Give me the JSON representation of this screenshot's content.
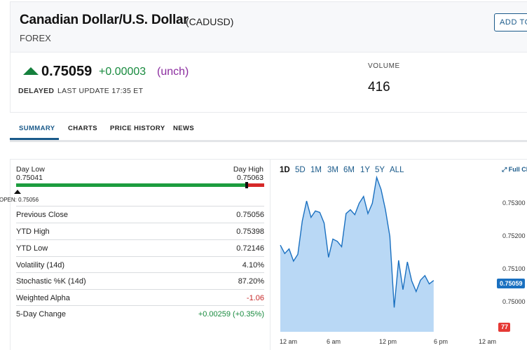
{
  "header": {
    "title": "Canadian Dollar/U.S. Dollar",
    "ticker": "(CADUSD)",
    "subtitle": "FOREX",
    "add_button": "ADD TO WA"
  },
  "quote": {
    "price": "0.75059",
    "change": "+0.00003",
    "change_pct": "(unch)",
    "delayed": "DELAYED",
    "last_update": "LAST UPDATE  17:35 ET",
    "volume_label": "VOLUME",
    "volume_value": "416",
    "colors": {
      "up": "#15803d",
      "unch": "#8b2c9f"
    }
  },
  "tabs": [
    {
      "label": "SUMMARY",
      "active": true
    },
    {
      "label": "CHARTS",
      "active": false
    },
    {
      "label": "PRICE HISTORY",
      "active": false
    },
    {
      "label": "NEWS",
      "active": false
    }
  ],
  "day_range": {
    "low_label": "Day Low",
    "low_value": "0.75041",
    "high_label": "Day High",
    "high_value": "0.75063",
    "open_label": "OPEN: 0.75056"
  },
  "stats": [
    {
      "label": "Previous Close",
      "value": "0.75056",
      "tone": ""
    },
    {
      "label": "YTD High",
      "value": "0.75398",
      "tone": ""
    },
    {
      "label": "YTD Low",
      "value": "0.72146",
      "tone": ""
    },
    {
      "label": "Volatility (14d)",
      "value": "4.10%",
      "tone": ""
    },
    {
      "label": "Stochastic %K (14d)",
      "value": "87.20%",
      "tone": ""
    },
    {
      "label": "Weighted Alpha",
      "value": "-1.06",
      "tone": "neg"
    },
    {
      "label": "5-Day Change",
      "value": "+0.00259 (+0.35%)",
      "tone": "pos"
    }
  ],
  "chart": {
    "ranges": [
      "1D",
      "5D",
      "1M",
      "3M",
      "6M",
      "1Y",
      "5Y",
      "ALL"
    ],
    "selected_range": "1D",
    "full_chart_label": "Full Chart",
    "y_ticks": [
      "0.75300",
      "0.75200",
      "0.75100",
      "0.75000"
    ],
    "x_ticks": [
      "12 am",
      "6 am",
      "12 pm",
      "6 pm",
      "12 am"
    ],
    "last_price_tag": "0.75059",
    "volume_tag": "77",
    "colors": {
      "line": "#1a70c0",
      "fill": "#b9d8f5",
      "vol_up": "#9fdcae",
      "vol_down": "#f3b3b3"
    }
  },
  "chart_data": {
    "type": "area",
    "title": "",
    "xlabel": "",
    "ylabel": "",
    "ylim": [
      0.7495,
      0.7534
    ],
    "x": [
      0,
      0.5,
      1,
      1.5,
      2,
      2.5,
      3,
      3.5,
      4,
      4.5,
      5,
      5.5,
      6,
      6.5,
      7,
      7.5,
      8,
      8.5,
      9,
      9.5,
      10,
      10.5,
      11,
      11.5,
      12,
      12.5,
      13,
      13.5,
      14,
      14.5,
      15,
      15.5,
      16,
      16.5,
      17,
      17.5
    ],
    "values": [
      0.75152,
      0.7513,
      0.75142,
      0.7511,
      0.75128,
      0.75215,
      0.75268,
      0.75225,
      0.75242,
      0.75238,
      0.7521,
      0.7512,
      0.75168,
      0.75162,
      0.75148,
      0.75235,
      0.75245,
      0.75232,
      0.75262,
      0.7528,
      0.75235,
      0.75262,
      0.7533,
      0.75298,
      0.75245,
      0.75175,
      0.74988,
      0.75112,
      0.75035,
      0.75108,
      0.75058,
      0.7503,
      0.7506,
      0.75072,
      0.7505,
      0.75059
    ]
  }
}
